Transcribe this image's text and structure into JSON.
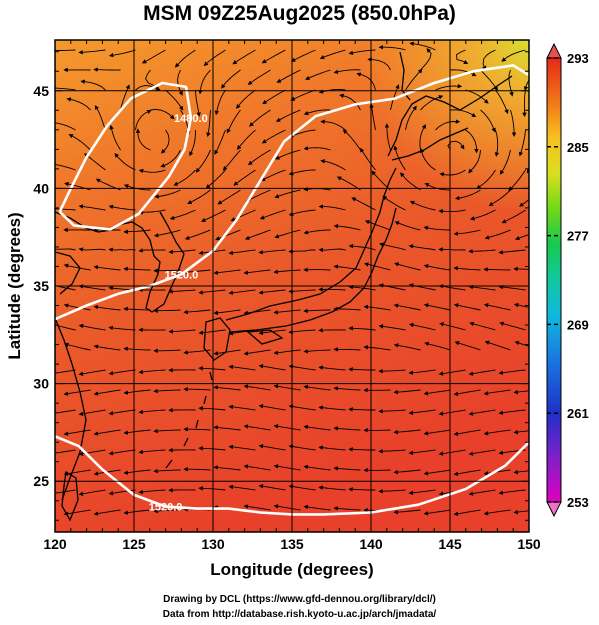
{
  "title": "MSM 09Z25Aug2025 (850.0hPa)",
  "credits": {
    "line1": "Drawing by DCL (https://www.gfd-dennou.org/library/dcl/)",
    "line2": "Data from http://database.rish.kyoto-u.ac.jp/arch/jmadata/"
  },
  "chart_data": {
    "type": "heatmap",
    "title": "MSM 09Z25Aug2025 (850.0hPa)",
    "xlabel": "Longitude (degrees)",
    "ylabel": "Latitude  (degrees)",
    "xlim": [
      120,
      150
    ],
    "ylim": [
      22.4,
      47.6
    ],
    "x_ticks": [
      120,
      125,
      130,
      135,
      140,
      145,
      150
    ],
    "y_ticks": [
      25,
      30,
      35,
      40,
      45
    ],
    "grid": true,
    "colorbar": {
      "min": 253,
      "max": 293,
      "ticks": [
        253,
        261,
        269,
        277,
        285,
        293
      ],
      "colors": [
        "#e000c0",
        "#6020c8",
        "#1030c8",
        "#1880e8",
        "#10c8d8",
        "#10c870",
        "#38d018",
        "#a8e018",
        "#f0e020",
        "#f8a818",
        "#f06018",
        "#e82818"
      ]
    },
    "contours": [
      {
        "label": "1480.0",
        "points": [
          [
            120.3,
            38.8
          ],
          [
            121.0,
            40.0
          ],
          [
            122.0,
            41.6
          ],
          [
            123.3,
            43.2
          ],
          [
            124.8,
            44.6
          ],
          [
            126.8,
            45.4
          ],
          [
            128.3,
            45.2
          ],
          [
            128.6,
            43.6
          ],
          [
            128.2,
            42.0
          ],
          [
            127.2,
            40.6
          ],
          [
            125.3,
            38.7
          ],
          [
            123.5,
            37.9
          ],
          [
            121.2,
            38.1
          ],
          [
            120.3,
            38.8
          ]
        ]
      },
      {
        "label": "1520.0",
        "points": [
          [
            120.0,
            33.3
          ],
          [
            122.0,
            34.0
          ],
          [
            124.0,
            34.6
          ],
          [
            126.0,
            35.0
          ],
          [
            128.0,
            35.6
          ],
          [
            130.0,
            36.8
          ],
          [
            131.5,
            38.4
          ],
          [
            133.0,
            40.4
          ],
          [
            134.5,
            42.4
          ],
          [
            136.5,
            43.7
          ],
          [
            139.0,
            44.3
          ],
          [
            141.5,
            44.6
          ],
          [
            144.0,
            45.4
          ],
          [
            146.5,
            46.0
          ],
          [
            149.0,
            46.3
          ],
          [
            150.0,
            45.8
          ]
        ]
      },
      {
        "label": "1520.0",
        "points": [
          [
            120.0,
            27.3
          ],
          [
            121.5,
            26.8
          ],
          [
            123.0,
            25.6
          ],
          [
            125.0,
            24.3
          ],
          [
            127.0,
            23.7
          ],
          [
            129.0,
            23.6
          ],
          [
            131.0,
            23.6
          ],
          [
            133.0,
            23.4
          ],
          [
            135.0,
            23.3
          ],
          [
            137.0,
            23.3
          ],
          [
            140.0,
            23.4
          ],
          [
            143.0,
            23.8
          ],
          [
            146.0,
            24.6
          ],
          [
            148.5,
            25.8
          ],
          [
            150.0,
            27.0
          ]
        ]
      }
    ]
  },
  "colors": {
    "field_base": "#ee6a28",
    "field_north": "#f4972c",
    "field_south": "#e8442a",
    "grid": "#000000",
    "contour": "#ffffff",
    "streamline": "#000000"
  }
}
